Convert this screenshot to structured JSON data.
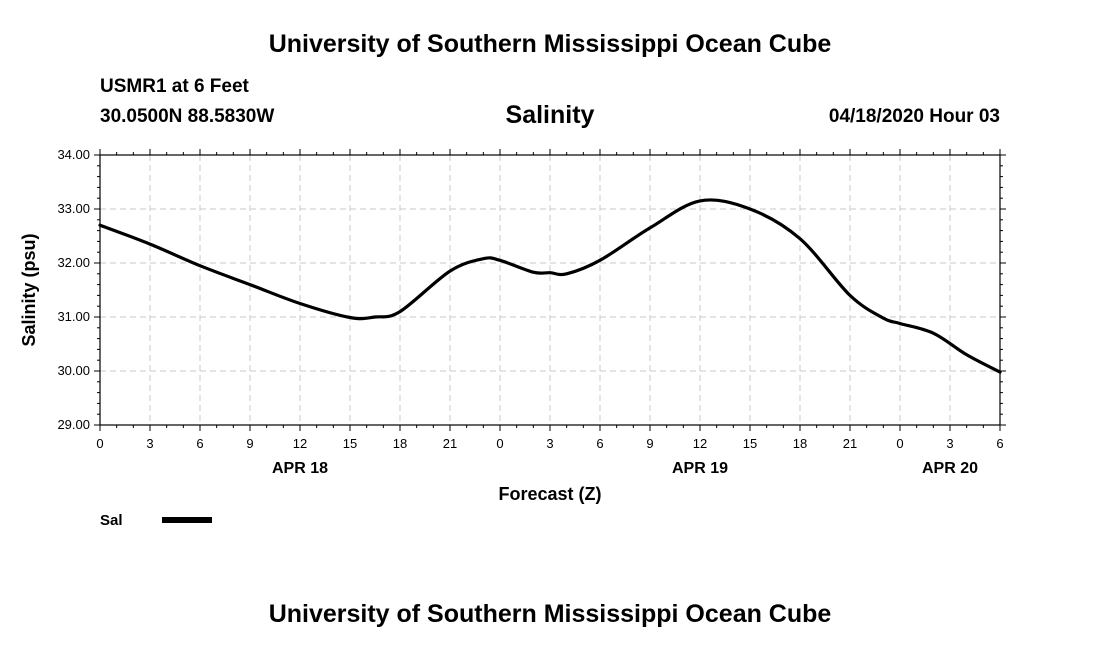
{
  "header": {
    "title": "University of Southern Mississippi Ocean Cube",
    "station": "USMR1 at 6 Feet",
    "coords": "30.0500N 88.5830W",
    "timestamp": "04/18/2020 Hour 03"
  },
  "footer": {
    "title": "University of Southern Mississippi Ocean Cube"
  },
  "chart_data": {
    "type": "line",
    "title": "Salinity",
    "xlabel": "Forecast (Z)",
    "ylabel": "Salinity (psu)",
    "ylim": [
      29.0,
      34.0
    ],
    "y_ticks": [
      "29.00",
      "30.00",
      "31.00",
      "32.00",
      "33.00",
      "34.00"
    ],
    "xlim": [
      0,
      54
    ],
    "x_ticks": [
      "0",
      "3",
      "6",
      "9",
      "12",
      "15",
      "18",
      "21",
      "0",
      "3",
      "6",
      "9",
      "12",
      "15",
      "18",
      "21",
      "0",
      "3",
      "6"
    ],
    "day_labels": [
      {
        "label": "APR 18",
        "x": 12
      },
      {
        "label": "APR 19",
        "x": 36
      },
      {
        "label": "APR 20",
        "x": 51
      }
    ],
    "grid": true,
    "line_color": "#000000",
    "series": [
      {
        "name": "Sal",
        "x": [
          0,
          3,
          6,
          9,
          12,
          15,
          16.5,
          18,
          21,
          23,
          24,
          26,
          27,
          28,
          30,
          33,
          36,
          39,
          42,
          45,
          47,
          48,
          50,
          52,
          54
        ],
        "values": [
          32.7,
          32.35,
          31.95,
          31.6,
          31.25,
          30.99,
          31.0,
          31.1,
          31.85,
          32.08,
          32.05,
          31.83,
          31.82,
          31.8,
          32.05,
          32.65,
          33.15,
          33.0,
          32.45,
          31.4,
          30.98,
          30.88,
          30.7,
          30.3,
          29.98
        ]
      }
    ],
    "legend": {
      "label": "Sal",
      "position": "bottom-left"
    }
  }
}
